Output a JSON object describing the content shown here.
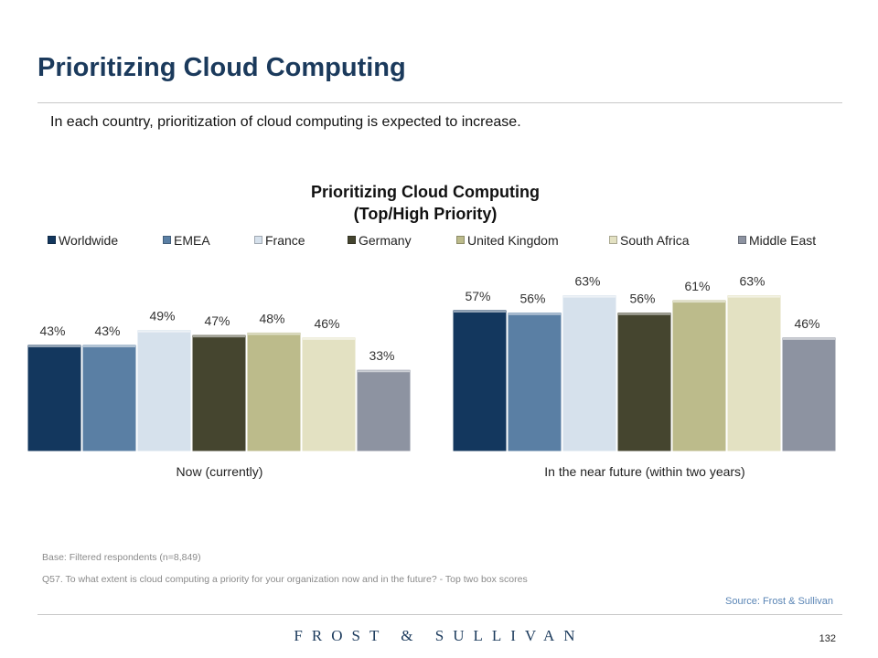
{
  "page": {
    "title": "Prioritizing Cloud Computing",
    "subtitle": "In each country, prioritization of cloud computing is expected to increase.",
    "base_note": "Base: Filtered respondents (n=8,849)",
    "question_note": "Q57. To what extent is cloud computing a priority for your organization now and in the future? - Top two box scores",
    "source": "Source: Frost & Sullivan",
    "brand": "FROST & SULLIVAN",
    "page_number": "132"
  },
  "chart_data": {
    "type": "bar",
    "title": "Prioritizing Cloud Computing",
    "subtitle": "(Top/High Priority)",
    "categories": [
      "Now (currently)",
      "In the near future (within two years)"
    ],
    "series": [
      {
        "name": "Worldwide",
        "color": "#13375e",
        "values": [
          43,
          57
        ],
        "labels": [
          "43%",
          "57%"
        ]
      },
      {
        "name": "EMEA",
        "color": "#5a7fa4",
        "values": [
          43,
          56
        ],
        "labels": [
          "43%",
          "56%"
        ]
      },
      {
        "name": "France",
        "color": "#d6e1ec",
        "values": [
          49,
          63
        ],
        "labels": [
          "49%",
          "63%"
        ]
      },
      {
        "name": "Germany",
        "color": "#45452f",
        "values": [
          47,
          56
        ],
        "labels": [
          "47%",
          "56%"
        ]
      },
      {
        "name": "United Kingdom",
        "color": "#bcbb8b",
        "values": [
          48,
          61
        ],
        "labels": [
          "48%",
          "61%"
        ]
      },
      {
        "name": "South Africa",
        "color": "#e3e1c2",
        "values": [
          46,
          63
        ],
        "labels": [
          "46%",
          "63%"
        ]
      },
      {
        "name": "Middle East",
        "color": "#8d93a1",
        "values": [
          33,
          46
        ],
        "labels": [
          "33%",
          "46%"
        ]
      }
    ],
    "unit": "%",
    "ylim": [
      0,
      70
    ],
    "legend_position": "top",
    "grid": false
  }
}
